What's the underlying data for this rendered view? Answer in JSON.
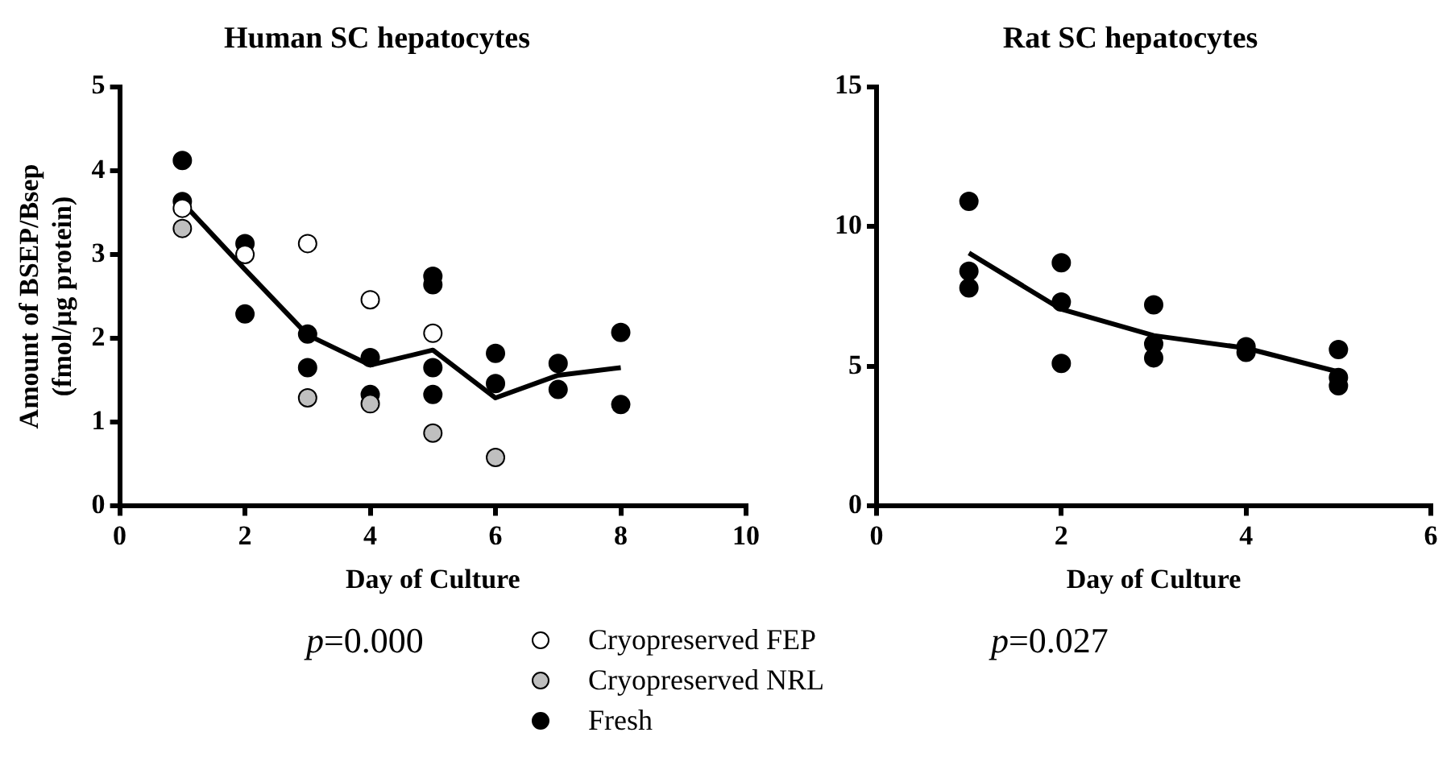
{
  "chart_data": [
    {
      "type": "scatter",
      "title": "Human SC hepatocytes",
      "xlabel": "Day of Culture",
      "ylabel": "Amount of BSEP/Bsep\n(fmol/µg protein)",
      "xlim": [
        0,
        10
      ],
      "xticks": [
        0,
        2,
        4,
        6,
        8,
        10
      ],
      "ylim": [
        0,
        5
      ],
      "yticks": [
        0,
        1,
        2,
        3,
        4,
        5
      ],
      "grid": false,
      "legend": "bottom",
      "marker": "circle",
      "annotations": [
        "p=0.000"
      ],
      "series": [
        {
          "name": "Cryopreserved FEP",
          "color": "#ffffff",
          "x": [
            1,
            2,
            3,
            4,
            5
          ],
          "values": [
            3.55,
            3.0,
            3.13,
            2.46,
            2.06
          ]
        },
        {
          "name": "Cryopreserved NRL",
          "color": "#bfbfbf",
          "x": [
            1,
            3,
            4,
            5,
            6
          ],
          "values": [
            3.31,
            1.29,
            1.22,
            0.87,
            0.58
          ]
        },
        {
          "name": "Fresh",
          "color": "#000000",
          "x": [
            1,
            1,
            2,
            2,
            3,
            3,
            4,
            4,
            5,
            5,
            5,
            5,
            6,
            6,
            7,
            7,
            8,
            8
          ],
          "values": [
            4.12,
            3.63,
            3.13,
            2.29,
            2.05,
            1.65,
            1.77,
            1.33,
            2.74,
            2.64,
            1.65,
            1.33,
            1.82,
            1.46,
            1.7,
            1.39,
            2.07,
            1.21
          ]
        },
        {
          "type": "line",
          "color": "#000000",
          "marker": "none",
          "line_style": "solid",
          "x": [
            1,
            2,
            3,
            4,
            5,
            6,
            7,
            8
          ],
          "values": [
            3.62,
            2.82,
            2.04,
            1.68,
            1.86,
            1.29,
            1.56,
            1.65
          ]
        }
      ]
    },
    {
      "type": "scatter",
      "title": "Rat SC hepatocytes",
      "xlabel": "Day of Culture",
      "xlim": [
        0,
        6
      ],
      "xticks": [
        0,
        2,
        4,
        6
      ],
      "ylim": [
        0,
        15
      ],
      "yticks": [
        0,
        5,
        10,
        15
      ],
      "grid": false,
      "marker": "circle",
      "annotations": [
        "p=0.027"
      ],
      "series": [
        {
          "color": "#000000",
          "x": [
            1,
            1,
            1,
            2,
            2,
            2,
            3,
            3,
            3,
            4,
            4,
            5,
            5,
            5
          ],
          "values": [
            10.9,
            8.4,
            7.8,
            8.7,
            7.3,
            5.1,
            7.2,
            5.8,
            5.3,
            5.7,
            5.5,
            5.6,
            4.6,
            4.3
          ]
        },
        {
          "type": "line",
          "color": "#000000",
          "marker": "none",
          "line_style": "solid",
          "x": [
            1,
            2,
            3,
            4,
            5
          ],
          "values": [
            9.05,
            7.04,
            6.1,
            5.65,
            4.8
          ]
        }
      ]
    }
  ]
}
